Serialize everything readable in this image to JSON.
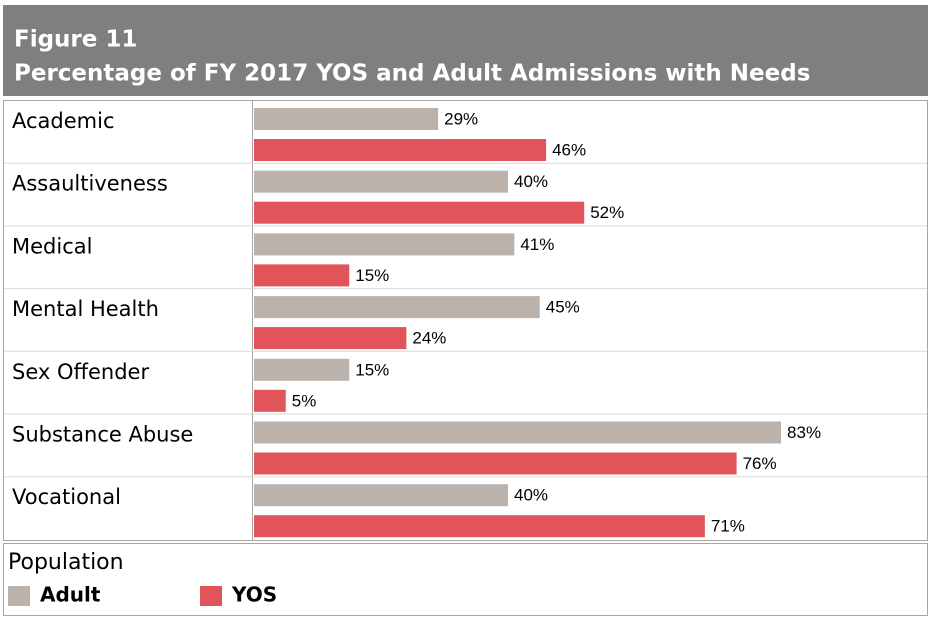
{
  "chart_data": {
    "type": "bar",
    "orientation": "horizontal",
    "title": "Figure 11",
    "subtitle": "Percentage of FY 2017 YOS and Adult Admissions with Needs",
    "categories": [
      "Academic",
      "Assaultiveness",
      "Medical",
      "Mental Health",
      "Sex Offender",
      "Substance Abuse",
      "Vocational"
    ],
    "series": [
      {
        "name": "Adult",
        "color": "#bcb2ac",
        "values": [
          29,
          40,
          41,
          45,
          15,
          83,
          40
        ],
        "value_labels": [
          "29%",
          "40%",
          "41%",
          "45%",
          "15%",
          "83%",
          "40%"
        ]
      },
      {
        "name": "YOS",
        "color": "#e1545a",
        "values": [
          46,
          52,
          15,
          24,
          5,
          76,
          71
        ],
        "value_labels": [
          "46%",
          "52%",
          "15%",
          "24%",
          "5%",
          "76%",
          "71%"
        ]
      }
    ],
    "legend_title": "Population",
    "legend_position": "bottom-left"
  }
}
